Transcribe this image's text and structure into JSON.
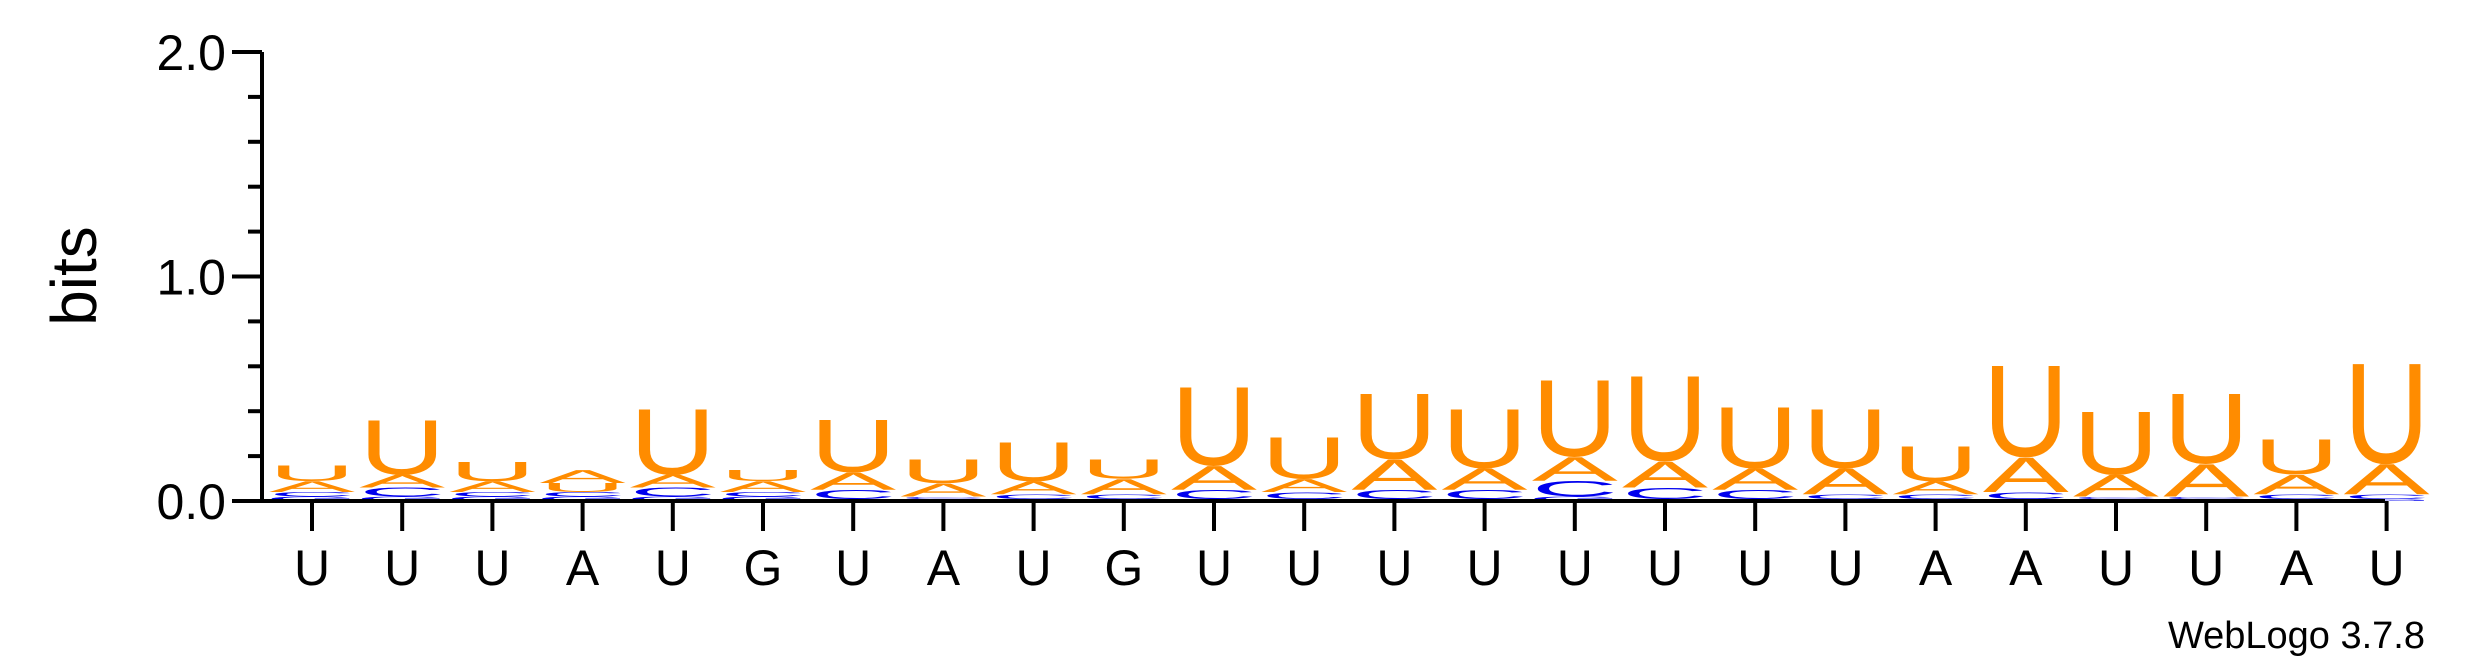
{
  "chart_data": {
    "type": "sequence-logo",
    "ylabel": "bits",
    "ylim": [
      0,
      2.0
    ],
    "yticks": [
      "0.0",
      "1.0",
      "2.0"
    ],
    "alphabet_colors": {
      "A": "#ff8c00",
      "U": "#ff8c00",
      "C": "#0000ee",
      "G": "#0000ee"
    },
    "positions": [
      {
        "label": "U",
        "stack": [
          {
            "l": "G",
            "h": 0.02
          },
          {
            "l": "C",
            "h": 0.02
          },
          {
            "l": "A",
            "h": 0.05
          },
          {
            "l": "U",
            "h": 0.07
          }
        ]
      },
      {
        "label": "U",
        "stack": [
          {
            "l": "G",
            "h": 0.02
          },
          {
            "l": "C",
            "h": 0.04
          },
          {
            "l": "A",
            "h": 0.06
          },
          {
            "l": "U",
            "h": 0.25
          }
        ]
      },
      {
        "label": "U",
        "stack": [
          {
            "l": "G",
            "h": 0.02
          },
          {
            "l": "C",
            "h": 0.02
          },
          {
            "l": "A",
            "h": 0.05
          },
          {
            "l": "U",
            "h": 0.09
          }
        ]
      },
      {
        "label": "A",
        "stack": [
          {
            "l": "G",
            "h": 0.02
          },
          {
            "l": "C",
            "h": 0.02
          },
          {
            "l": "U",
            "h": 0.04
          },
          {
            "l": "A",
            "h": 0.06
          }
        ]
      },
      {
        "label": "U",
        "stack": [
          {
            "l": "G",
            "h": 0.02
          },
          {
            "l": "C",
            "h": 0.04
          },
          {
            "l": "A",
            "h": 0.06
          },
          {
            "l": "U",
            "h": 0.3
          }
        ]
      },
      {
        "label": "G",
        "stack": [
          {
            "l": "G",
            "h": 0.02
          },
          {
            "l": "C",
            "h": 0.02
          },
          {
            "l": "A",
            "h": 0.05
          },
          {
            "l": "U",
            "h": 0.05
          }
        ]
      },
      {
        "label": "U",
        "stack": [
          {
            "l": "G",
            "h": 0.01
          },
          {
            "l": "C",
            "h": 0.04
          },
          {
            "l": "A",
            "h": 0.08
          },
          {
            "l": "U",
            "h": 0.24
          }
        ]
      },
      {
        "label": "A",
        "stack": [
          {
            "l": "G",
            "h": 0.01
          },
          {
            "l": "C",
            "h": 0.01
          },
          {
            "l": "A",
            "h": 0.06
          },
          {
            "l": "U",
            "h": 0.11
          }
        ]
      },
      {
        "label": "U",
        "stack": [
          {
            "l": "G",
            "h": 0.01
          },
          {
            "l": "C",
            "h": 0.02
          },
          {
            "l": "A",
            "h": 0.06
          },
          {
            "l": "U",
            "h": 0.18
          }
        ]
      },
      {
        "label": "G",
        "stack": [
          {
            "l": "G",
            "h": 0.01
          },
          {
            "l": "C",
            "h": 0.02
          },
          {
            "l": "A",
            "h": 0.07
          },
          {
            "l": "U",
            "h": 0.09
          }
        ]
      },
      {
        "label": "U",
        "stack": [
          {
            "l": "G",
            "h": 0.01
          },
          {
            "l": "C",
            "h": 0.04
          },
          {
            "l": "A",
            "h": 0.11
          },
          {
            "l": "U",
            "h": 0.36
          }
        ]
      },
      {
        "label": "U",
        "stack": [
          {
            "l": "G",
            "h": 0.01
          },
          {
            "l": "C",
            "h": 0.03
          },
          {
            "l": "A",
            "h": 0.06
          },
          {
            "l": "U",
            "h": 0.19
          }
        ]
      },
      {
        "label": "U",
        "stack": [
          {
            "l": "G",
            "h": 0.01
          },
          {
            "l": "C",
            "h": 0.04
          },
          {
            "l": "A",
            "h": 0.14
          },
          {
            "l": "U",
            "h": 0.3
          }
        ]
      },
      {
        "label": "U",
        "stack": [
          {
            "l": "G",
            "h": 0.01
          },
          {
            "l": "C",
            "h": 0.04
          },
          {
            "l": "A",
            "h": 0.1
          },
          {
            "l": "U",
            "h": 0.27
          }
        ]
      },
      {
        "label": "U",
        "stack": [
          {
            "l": "G",
            "h": 0.02
          },
          {
            "l": "C",
            "h": 0.07
          },
          {
            "l": "A",
            "h": 0.11
          },
          {
            "l": "U",
            "h": 0.35
          }
        ]
      },
      {
        "label": "U",
        "stack": [
          {
            "l": "G",
            "h": 0.01
          },
          {
            "l": "C",
            "h": 0.05
          },
          {
            "l": "A",
            "h": 0.12
          },
          {
            "l": "U",
            "h": 0.39
          }
        ]
      },
      {
        "label": "U",
        "stack": [
          {
            "l": "G",
            "h": 0.01
          },
          {
            "l": "C",
            "h": 0.04
          },
          {
            "l": "A",
            "h": 0.1
          },
          {
            "l": "U",
            "h": 0.28
          }
        ]
      },
      {
        "label": "U",
        "stack": [
          {
            "l": "G",
            "h": 0.01
          },
          {
            "l": "C",
            "h": 0.02
          },
          {
            "l": "A",
            "h": 0.12
          },
          {
            "l": "U",
            "h": 0.27
          }
        ]
      },
      {
        "label": "A",
        "stack": [
          {
            "l": "G",
            "h": 0.01
          },
          {
            "l": "C",
            "h": 0.02
          },
          {
            "l": "A",
            "h": 0.06
          },
          {
            "l": "U",
            "h": 0.16
          }
        ]
      },
      {
        "label": "A",
        "stack": [
          {
            "l": "G",
            "h": 0.01
          },
          {
            "l": "C",
            "h": 0.03
          },
          {
            "l": "A",
            "h": 0.16
          },
          {
            "l": "U",
            "h": 0.42
          }
        ]
      },
      {
        "label": "U",
        "stack": [
          {
            "l": "G",
            "h": 0.01
          },
          {
            "l": "C",
            "h": 0.01
          },
          {
            "l": "A",
            "h": 0.1
          },
          {
            "l": "U",
            "h": 0.29
          }
        ]
      },
      {
        "label": "U",
        "stack": [
          {
            "l": "G",
            "h": 0.01
          },
          {
            "l": "C",
            "h": 0.01
          },
          {
            "l": "A",
            "h": 0.15
          },
          {
            "l": "U",
            "h": 0.32
          }
        ]
      },
      {
        "label": "A",
        "stack": [
          {
            "l": "G",
            "h": 0.01
          },
          {
            "l": "C",
            "h": 0.02
          },
          {
            "l": "A",
            "h": 0.09
          },
          {
            "l": "U",
            "h": 0.16
          }
        ]
      },
      {
        "label": "U",
        "stack": [
          {
            "l": "G",
            "h": 0.01
          },
          {
            "l": "C",
            "h": 0.02
          },
          {
            "l": "A",
            "h": 0.14
          },
          {
            "l": "U",
            "h": 0.46
          }
        ]
      }
    ]
  },
  "credit": "WebLogo 3.7.8"
}
